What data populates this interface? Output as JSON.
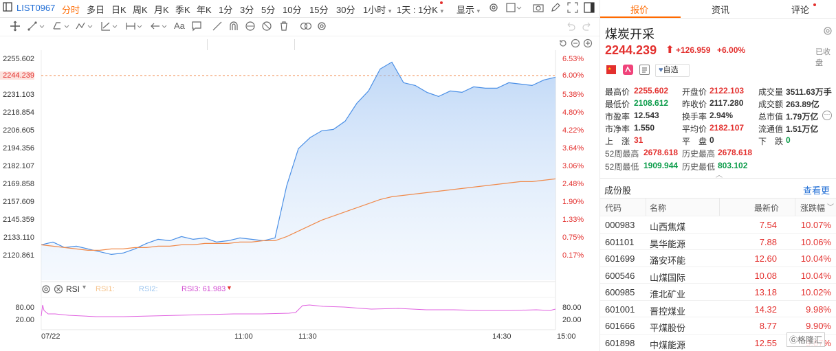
{
  "toolbar": {
    "ticker": "LIST0967",
    "periods": [
      "分时",
      "多日",
      "日K",
      "周K",
      "月K",
      "季K",
      "年K",
      "1分",
      "3分",
      "5分",
      "10分",
      "15分",
      "30分"
    ],
    "hour_select": "1小时",
    "day_select": "1天 : 1分K",
    "display_label": "显示"
  },
  "drawtools": {
    "text_tool": "Aa"
  },
  "chart": {
    "y_left_ticks": [
      "2255.602",
      "2244.239",
      "2231.103",
      "2218.854",
      "2206.605",
      "2194.356",
      "2182.107",
      "2169.858",
      "2157.609",
      "2145.359",
      "2133.110",
      "2120.861"
    ],
    "y_right_ticks": [
      "6.53%",
      "6.00%",
      "5.38%",
      "4.80%",
      "4.22%",
      "3.64%",
      "3.06%",
      "2.48%",
      "1.90%",
      "1.33%",
      "0.75%",
      "0.17%"
    ],
    "x_ticks": [
      "07/22",
      "11:00",
      "11:30",
      "14:30",
      "15:00"
    ],
    "current_price_label": "2244.239",
    "current_pct_label": "6.00%"
  },
  "rsi": {
    "title": "RSI",
    "rsi1_label": "RSI1:",
    "rsi2_label": "RSI2:",
    "rsi3_label": "RSI3: 61.983",
    "ticks": [
      "80.00",
      "20.00"
    ]
  },
  "chart_data": {
    "type": "line",
    "series": [
      {
        "values": [
          2122,
          2124,
          2120,
          2121,
          2119,
          2117,
          2115,
          2116,
          2119,
          2123,
          2126,
          2125,
          2128,
          2126,
          2127,
          2124,
          2125,
          2127,
          2126,
          2125,
          2127,
          2165,
          2192,
          2200,
          2205,
          2206,
          2212,
          2225,
          2234,
          2250,
          2255,
          2240,
          2238,
          2233,
          2230,
          2234,
          2233,
          2237,
          2236,
          2236,
          2240,
          2239,
          2238,
          2242,
          2244
        ]
      },
      {
        "values": [
          2122,
          2121,
          2120,
          2119,
          2118,
          2118,
          2119,
          2119,
          2120,
          2120,
          2121,
          2121,
          2122,
          2122,
          2123,
          2123,
          2123,
          2124,
          2124,
          2125,
          2125,
          2128,
          2132,
          2136,
          2140,
          2143,
          2146,
          2149,
          2152,
          2155,
          2157,
          2158,
          2159,
          2160,
          2161,
          2162,
          2163,
          2164,
          2165,
          2166,
          2167,
          2168,
          2168,
          2169,
          2170
        ]
      }
    ],
    "x_start": "07/22",
    "ylim": [
      2114.2,
      2259.2
    ]
  },
  "panel": {
    "tabs": [
      "报价",
      "资讯",
      "评论"
    ],
    "title": "煤炭开采",
    "price": "2244.239",
    "change": "+126.959",
    "change_pct": "+6.00%",
    "closed": "已收盘",
    "watch_label": "自选",
    "quotes": [
      {
        "label": "最高价",
        "value": "2255.602",
        "color": "red"
      },
      {
        "label": "开盘价",
        "value": "2122.103",
        "color": "red"
      },
      {
        "label": "成交量",
        "value": "3511.63万手",
        "color": "dark"
      },
      {
        "label": "最低价",
        "value": "2108.612",
        "color": "green"
      },
      {
        "label": "昨收价",
        "value": "2117.280",
        "color": "dark"
      },
      {
        "label": "成交额",
        "value": "263.89亿",
        "color": "dark"
      },
      {
        "label": "市盈率",
        "value": "12.543",
        "color": "dark"
      },
      {
        "label": "换手率",
        "value": "2.94%",
        "color": "dark"
      },
      {
        "label": "总市值",
        "value": "1.79万亿",
        "color": "dark"
      },
      {
        "label": "市净率",
        "value": "1.550",
        "color": "dark"
      },
      {
        "label": "平均价",
        "value": "2182.107",
        "color": "red"
      },
      {
        "label": "流通值",
        "value": "1.51万亿",
        "color": "dark"
      },
      {
        "label": "上　涨",
        "value": "31",
        "color": "red"
      },
      {
        "label": "平　盘",
        "value": "0",
        "color": "dark"
      },
      {
        "label": "下　跌",
        "value": "0",
        "color": "green"
      }
    ],
    "wk52_high_label": "52周最高",
    "wk52_high": "2678.618",
    "hist_high_label": "历史最高",
    "hist_high": "2678.618",
    "wk52_low_label": "52周最低",
    "wk52_low": "1909.944",
    "hist_low_label": "历史最低",
    "hist_low": "803.102",
    "constituents_title": "成份股",
    "see_more": "查看更多",
    "table_headers": [
      "代码",
      "名称",
      "最新价",
      "涨跌幅"
    ],
    "rows": [
      {
        "code": "000983",
        "name": "山西焦煤",
        "price": "7.54",
        "pct": "10.07%"
      },
      {
        "code": "601101",
        "name": "昊华能源",
        "price": "7.88",
        "pct": "10.06%"
      },
      {
        "code": "601699",
        "name": "潞安环能",
        "price": "12.60",
        "pct": "10.04%"
      },
      {
        "code": "600546",
        "name": "山煤国际",
        "price": "10.08",
        "pct": "10.04%"
      },
      {
        "code": "600985",
        "name": "淮北矿业",
        "price": "13.18",
        "pct": "10.02%"
      },
      {
        "code": "601001",
        "name": "晋控煤业",
        "price": "14.32",
        "pct": "9.98%"
      },
      {
        "code": "601666",
        "name": "平煤股份",
        "price": "8.77",
        "pct": "9.90%"
      },
      {
        "code": "601898",
        "name": "中煤能源",
        "price": "12.55",
        "pct": "9.87%"
      }
    ],
    "watermark": "格隆汇"
  }
}
